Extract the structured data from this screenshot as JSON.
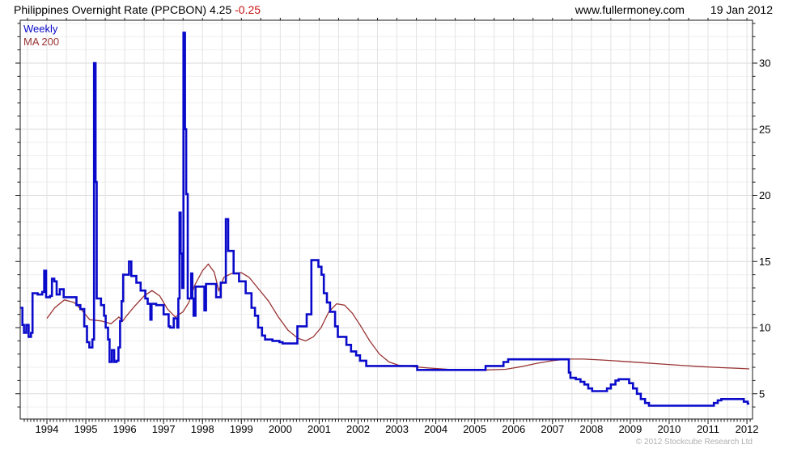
{
  "header": {
    "title": "Philippines Overnight Rate (PPCBON)",
    "last_value": "4.25",
    "change": "-0.25",
    "site": "www.fullermoney.com",
    "date": "19 Jan 2012"
  },
  "legend": {
    "weekly_label": "Weekly",
    "ma_label": "MA 200"
  },
  "footer": {
    "copyright": "© 2012 Stockcube Research Ltd"
  },
  "colors": {
    "weekly": "#0a0acb",
    "ma200": "#993333",
    "change_text": "#cc1111",
    "frame": "#1a1a1a",
    "grid_minor_h": "#efefef",
    "grid_major_h": "#dadada",
    "grid_v": "#e3e3e3",
    "copyright_gray": "#b0b0b0"
  },
  "chart_data": {
    "type": "line",
    "title": "Philippines Overnight Rate (PPCBON) 4.25 -0.25",
    "xlabel": "",
    "ylabel": "",
    "grid": true,
    "legend_position": "top-left",
    "x_axis": {
      "range": [
        1993.3,
        2012.13
      ],
      "tick_years": [
        1994,
        1995,
        1996,
        1997,
        1998,
        1999,
        2000,
        2001,
        2002,
        2003,
        2004,
        2005,
        2006,
        2007,
        2008,
        2009,
        2010,
        2011,
        2012
      ]
    },
    "y_axis": {
      "range": [
        3.1,
        33.2
      ],
      "ticks": [
        5,
        10,
        15,
        20,
        25,
        30
      ],
      "minor_step": 1,
      "major_step": 5
    },
    "series": [
      {
        "name": "Weekly",
        "style": "step",
        "color": "#0a0acb",
        "width": 2.6,
        "points": [
          [
            1993.32,
            11.5
          ],
          [
            1993.37,
            10.2
          ],
          [
            1993.41,
            9.6
          ],
          [
            1993.47,
            10.2
          ],
          [
            1993.53,
            9.3
          ],
          [
            1993.59,
            9.6
          ],
          [
            1993.63,
            12.6
          ],
          [
            1993.76,
            12.5
          ],
          [
            1993.88,
            12.7
          ],
          [
            1993.93,
            14.3
          ],
          [
            1993.98,
            12.3
          ],
          [
            1994.08,
            12.4
          ],
          [
            1994.13,
            13.7
          ],
          [
            1994.19,
            13.5
          ],
          [
            1994.25,
            12.5
          ],
          [
            1994.33,
            12.9
          ],
          [
            1994.43,
            12.3
          ],
          [
            1994.62,
            12.3
          ],
          [
            1994.76,
            11.7
          ],
          [
            1994.86,
            11.4
          ],
          [
            1994.96,
            10.1
          ],
          [
            1995.03,
            8.9
          ],
          [
            1995.09,
            8.5
          ],
          [
            1995.17,
            9.1
          ],
          [
            1995.21,
            30.0
          ],
          [
            1995.25,
            21.0
          ],
          [
            1995.28,
            12.2
          ],
          [
            1995.39,
            11.7
          ],
          [
            1995.47,
            10.9
          ],
          [
            1995.51,
            10.0
          ],
          [
            1995.57,
            9.1
          ],
          [
            1995.61,
            7.4
          ],
          [
            1995.67,
            8.3
          ],
          [
            1995.73,
            7.4
          ],
          [
            1995.79,
            7.5
          ],
          [
            1995.84,
            8.5
          ],
          [
            1995.88,
            10.5
          ],
          [
            1995.92,
            12.0
          ],
          [
            1995.96,
            14.0
          ],
          [
            1996.11,
            15.0
          ],
          [
            1996.17,
            13.9
          ],
          [
            1996.3,
            13.4
          ],
          [
            1996.41,
            12.8
          ],
          [
            1996.53,
            12.2
          ],
          [
            1996.59,
            11.8
          ],
          [
            1996.66,
            10.6
          ],
          [
            1996.69,
            11.8
          ],
          [
            1996.81,
            11.7
          ],
          [
            1997.0,
            11.0
          ],
          [
            1997.13,
            10.1
          ],
          [
            1997.17,
            10.0
          ],
          [
            1997.26,
            10.7
          ],
          [
            1997.35,
            10.0
          ],
          [
            1997.38,
            12.2
          ],
          [
            1997.41,
            18.7
          ],
          [
            1997.44,
            15.6
          ],
          [
            1997.48,
            13.0
          ],
          [
            1997.51,
            32.3
          ],
          [
            1997.55,
            25.0
          ],
          [
            1997.58,
            20.1
          ],
          [
            1997.62,
            12.2
          ],
          [
            1997.71,
            14.1
          ],
          [
            1997.74,
            12.2
          ],
          [
            1997.77,
            10.9
          ],
          [
            1997.82,
            13.1
          ],
          [
            1998.05,
            11.3
          ],
          [
            1998.09,
            13.3
          ],
          [
            1998.35,
            12.3
          ],
          [
            1998.47,
            13.4
          ],
          [
            1998.6,
            18.2
          ],
          [
            1998.66,
            15.8
          ],
          [
            1998.8,
            14.1
          ],
          [
            1998.94,
            13.5
          ],
          [
            1999.11,
            12.6
          ],
          [
            1999.26,
            11.5
          ],
          [
            1999.35,
            10.9
          ],
          [
            1999.43,
            10.0
          ],
          [
            1999.53,
            9.4
          ],
          [
            1999.61,
            9.1
          ],
          [
            1999.8,
            9.0
          ],
          [
            1999.98,
            8.9
          ],
          [
            2000.06,
            8.8
          ],
          [
            2000.44,
            10.1
          ],
          [
            2000.68,
            11.0
          ],
          [
            2000.8,
            15.1
          ],
          [
            2000.98,
            14.6
          ],
          [
            2001.06,
            14.0
          ],
          [
            2001.12,
            12.6
          ],
          [
            2001.2,
            11.9
          ],
          [
            2001.28,
            11.2
          ],
          [
            2001.41,
            10.1
          ],
          [
            2001.48,
            9.3
          ],
          [
            2001.7,
            8.7
          ],
          [
            2001.82,
            8.2
          ],
          [
            2001.95,
            7.9
          ],
          [
            2002.05,
            7.5
          ],
          [
            2002.21,
            7.1
          ],
          [
            2003.52,
            6.8
          ],
          [
            2005.28,
            7.1
          ],
          [
            2005.74,
            7.4
          ],
          [
            2005.86,
            7.6
          ],
          [
            2007.42,
            6.6
          ],
          [
            2007.46,
            6.2
          ],
          [
            2007.6,
            6.1
          ],
          [
            2007.72,
            5.9
          ],
          [
            2007.82,
            5.7
          ],
          [
            2007.92,
            5.4
          ],
          [
            2008.02,
            5.2
          ],
          [
            2008.4,
            5.4
          ],
          [
            2008.5,
            5.7
          ],
          [
            2008.62,
            6.0
          ],
          [
            2008.7,
            6.1
          ],
          [
            2008.97,
            5.8
          ],
          [
            2009.07,
            5.4
          ],
          [
            2009.17,
            5.0
          ],
          [
            2009.27,
            4.6
          ],
          [
            2009.38,
            4.3
          ],
          [
            2009.48,
            4.1
          ],
          [
            2011.15,
            4.3
          ],
          [
            2011.25,
            4.5
          ],
          [
            2011.34,
            4.6
          ],
          [
            2011.92,
            4.4
          ],
          [
            2012.02,
            4.25
          ],
          [
            2012.06,
            4.25
          ]
        ]
      },
      {
        "name": "MA 200",
        "style": "line",
        "color": "#993333",
        "width": 1.3,
        "points": [
          [
            1994.0,
            10.7
          ],
          [
            1994.2,
            11.5
          ],
          [
            1994.45,
            12.1
          ],
          [
            1994.7,
            11.9
          ],
          [
            1994.9,
            11.3
          ],
          [
            1995.1,
            10.6
          ],
          [
            1995.4,
            10.5
          ],
          [
            1995.65,
            10.3
          ],
          [
            1995.85,
            10.8
          ],
          [
            1995.95,
            10.5
          ],
          [
            1996.05,
            10.9
          ],
          [
            1996.25,
            11.6
          ],
          [
            1996.5,
            12.4
          ],
          [
            1996.7,
            12.8
          ],
          [
            1996.9,
            12.4
          ],
          [
            1997.1,
            11.4
          ],
          [
            1997.3,
            10.8
          ],
          [
            1997.5,
            11.2
          ],
          [
            1997.65,
            11.9
          ],
          [
            1997.8,
            13.2
          ],
          [
            1998.0,
            14.3
          ],
          [
            1998.15,
            14.8
          ],
          [
            1998.3,
            14.2
          ],
          [
            1998.42,
            12.8
          ],
          [
            1998.55,
            13.8
          ],
          [
            1998.75,
            14.1
          ],
          [
            1999.0,
            14.15
          ],
          [
            1999.2,
            13.8
          ],
          [
            1999.45,
            12.9
          ],
          [
            1999.7,
            12.0
          ],
          [
            1999.95,
            10.8
          ],
          [
            2000.2,
            9.8
          ],
          [
            2000.45,
            9.2
          ],
          [
            2000.65,
            9.0
          ],
          [
            2000.85,
            9.3
          ],
          [
            2001.05,
            10.0
          ],
          [
            2001.25,
            11.2
          ],
          [
            2001.45,
            11.8
          ],
          [
            2001.65,
            11.7
          ],
          [
            2001.85,
            11.1
          ],
          [
            2002.05,
            10.2
          ],
          [
            2002.3,
            9.0
          ],
          [
            2002.55,
            8.0
          ],
          [
            2002.8,
            7.4
          ],
          [
            2003.05,
            7.15
          ],
          [
            2003.4,
            7.05
          ],
          [
            2003.8,
            6.95
          ],
          [
            2004.3,
            6.85
          ],
          [
            2004.8,
            6.8
          ],
          [
            2005.3,
            6.8
          ],
          [
            2005.8,
            6.85
          ],
          [
            2006.2,
            7.05
          ],
          [
            2006.6,
            7.3
          ],
          [
            2007.0,
            7.5
          ],
          [
            2007.4,
            7.62
          ],
          [
            2007.8,
            7.62
          ],
          [
            2008.3,
            7.55
          ],
          [
            2008.8,
            7.45
          ],
          [
            2009.3,
            7.35
          ],
          [
            2009.8,
            7.25
          ],
          [
            2010.3,
            7.15
          ],
          [
            2010.8,
            7.05
          ],
          [
            2011.3,
            6.98
          ],
          [
            2011.8,
            6.92
          ],
          [
            2012.06,
            6.88
          ]
        ]
      }
    ]
  }
}
